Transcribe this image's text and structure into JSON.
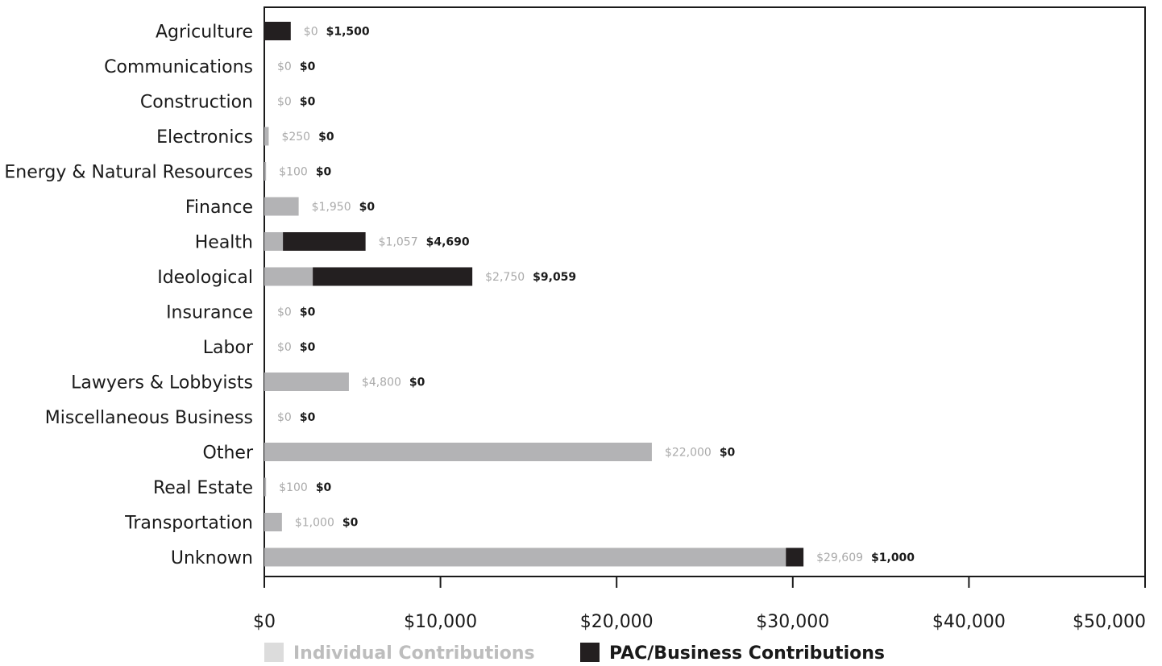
{
  "chart_data": {
    "type": "bar",
    "orientation": "horizontal",
    "stacked": true,
    "categories": [
      "Agriculture",
      "Communications",
      "Construction",
      "Electronics",
      "Energy & Natural Resources",
      "Finance",
      "Health",
      "Ideological",
      "Insurance",
      "Labor",
      "Lawyers & Lobbyists",
      "Miscellaneous Business",
      "Other",
      "Real Estate",
      "Transportation",
      "Unknown"
    ],
    "series": [
      {
        "name": "Individual Contributions",
        "color": "#b3b3b5",
        "values": [
          0,
          0,
          0,
          250,
          100,
          1950,
          1057,
          2750,
          0,
          0,
          4800,
          0,
          22000,
          100,
          1000,
          29609
        ],
        "labels": [
          "$0",
          "$0",
          "$0",
          "$250",
          "$100",
          "$1,950",
          "$1,057",
          "$2,750",
          "$0",
          "$0",
          "$4,800",
          "$0",
          "$22,000",
          "$100",
          "$1,000",
          "$29,609"
        ]
      },
      {
        "name": "PAC/Business Contributions",
        "color": "#231f20",
        "values": [
          1500,
          0,
          0,
          0,
          0,
          0,
          4690,
          9059,
          0,
          0,
          0,
          0,
          0,
          0,
          0,
          1000
        ],
        "labels": [
          "$1,500",
          "$0",
          "$0",
          "$0",
          "$0",
          "$0",
          "$4,690",
          "$9,059",
          "$0",
          "$0",
          "$0",
          "$0",
          "$0",
          "$0",
          "$0",
          "$1,000"
        ]
      }
    ],
    "xlim": [
      0,
      50000
    ],
    "xticks": [
      0,
      10000,
      20000,
      30000,
      40000,
      50000
    ],
    "xtick_labels": [
      "$0",
      "$10,000",
      "$20,000",
      "$30,000",
      "$40,000",
      "$50,000"
    ],
    "title": "",
    "xlabel": "",
    "ylabel": "",
    "grid": false,
    "legend_position": "bottom",
    "legend_colors": {
      "Individual Contributions": "#dcdcdc",
      "PAC/Business Contributions": "#231f20"
    }
  }
}
